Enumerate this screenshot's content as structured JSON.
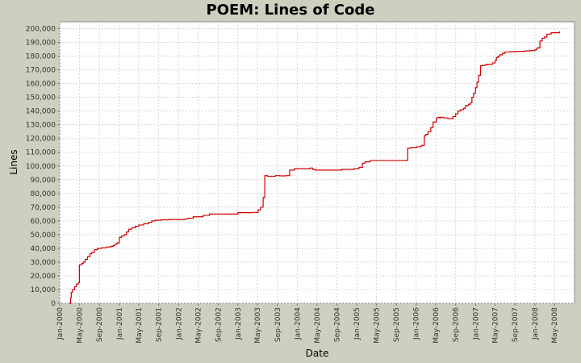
{
  "chart_data": {
    "type": "line",
    "title": "POEM: Lines of Code",
    "xlabel": "Date",
    "ylabel": "Lines",
    "ylim": [
      0,
      205000
    ],
    "xlim": [
      "2000-01-01",
      "2008-09-01"
    ],
    "y_ticks": [
      0,
      10000,
      20000,
      30000,
      40000,
      50000,
      60000,
      70000,
      80000,
      90000,
      100000,
      110000,
      120000,
      130000,
      140000,
      150000,
      160000,
      170000,
      180000,
      190000,
      200000
    ],
    "y_tick_labels": [
      "0",
      "10,000",
      "20,000",
      "30,000",
      "40,000",
      "50,000",
      "60,000",
      "70,000",
      "80,000",
      "90,000",
      "100,000",
      "110,000",
      "120,000",
      "130,000",
      "140,000",
      "150,000",
      "160,000",
      "170,000",
      "180,000",
      "190,000",
      "200,000"
    ],
    "x_ticks": [
      "2000-01-01",
      "2000-05-01",
      "2000-09-01",
      "2001-01-01",
      "2001-05-01",
      "2001-09-01",
      "2002-01-01",
      "2002-05-01",
      "2002-09-01",
      "2003-01-01",
      "2003-05-01",
      "2003-09-01",
      "2004-01-01",
      "2004-05-01",
      "2004-09-01",
      "2005-01-01",
      "2005-05-01",
      "2005-09-01",
      "2006-01-01",
      "2006-05-01",
      "2006-09-01",
      "2007-01-01",
      "2007-05-01",
      "2007-09-01",
      "2008-01-01",
      "2008-05-01"
    ],
    "x_tick_labels": [
      "Jan-2000",
      "May-2000",
      "Sep-2000",
      "Jan-2001",
      "May-2001",
      "Sep-2001",
      "Jan-2002",
      "May-2002",
      "Sep-2002",
      "Jan-2003",
      "May-2003",
      "Sep-2003",
      "Jan-2004",
      "May-2004",
      "Sep-2004",
      "Jan-2005",
      "May-2005",
      "Sep-2005",
      "Jan-2006",
      "May-2006",
      "Sep-2006",
      "Jan-2007",
      "May-2007",
      "Sep-2007",
      "Jan-2008",
      "May-2008"
    ],
    "grid": true,
    "step": true,
    "colors": {
      "line": "#cc0000",
      "plot_background": "#ffffff",
      "page_background": "#cfcfbf"
    },
    "series": [
      {
        "x": [
          "2000-03-01",
          "2000-03-08",
          "2000-03-12",
          "2000-03-20",
          "2000-04-01",
          "2000-04-12",
          "2000-04-24",
          "2000-05-01",
          "2000-05-15",
          "2000-05-25",
          "2000-06-05",
          "2000-06-20",
          "2000-07-05",
          "2000-07-15",
          "2000-08-01",
          "2000-08-20",
          "2000-09-15",
          "2000-10-15",
          "2000-11-10",
          "2000-11-25",
          "2000-12-05",
          "2000-12-18",
          "2001-01-02",
          "2001-01-15",
          "2001-02-01",
          "2001-02-15",
          "2001-03-01",
          "2001-03-20",
          "2001-04-10",
          "2001-05-01",
          "2001-06-01",
          "2001-07-01",
          "2001-07-20",
          "2001-08-10",
          "2001-09-15",
          "2001-11-01",
          "2002-01-05",
          "2002-02-10",
          "2002-03-01",
          "2002-04-01",
          "2002-06-01",
          "2002-07-10",
          "2003-01-01",
          "2003-04-01",
          "2003-05-05",
          "2003-05-20",
          "2003-06-05",
          "2003-06-15",
          "2003-07-01",
          "2003-08-20",
          "2003-09-15",
          "2003-10-25",
          "2003-11-15",
          "2003-12-15",
          "2004-01-20",
          "2004-03-20",
          "2004-04-05",
          "2004-04-20",
          "2004-10-01",
          "2004-12-15",
          "2005-01-15",
          "2005-02-05",
          "2005-02-20",
          "2005-03-25",
          "2005-11-01",
          "2005-11-10",
          "2005-12-01",
          "2006-01-05",
          "2006-02-01",
          "2006-02-20",
          "2006-03-01",
          "2006-03-15",
          "2006-04-01",
          "2006-04-15",
          "2006-05-05",
          "2006-05-15",
          "2006-05-25",
          "2006-06-01",
          "2006-06-20",
          "2006-07-15",
          "2006-08-15",
          "2006-09-01",
          "2006-09-15",
          "2006-10-01",
          "2006-10-20",
          "2006-11-01",
          "2006-11-20",
          "2006-12-01",
          "2006-12-10",
          "2006-12-20",
          "2007-01-01",
          "2007-01-10",
          "2007-01-20",
          "2007-02-01",
          "2007-02-10",
          "2007-02-20",
          "2007-03-01",
          "2007-03-10",
          "2007-04-15",
          "2007-05-01",
          "2007-05-10",
          "2007-05-20",
          "2007-06-01",
          "2007-06-15",
          "2007-07-01",
          "2007-08-01",
          "2007-09-01",
          "2007-10-01",
          "2007-11-01",
          "2007-12-01",
          "2008-01-01",
          "2008-01-10",
          "2008-01-15",
          "2008-02-01",
          "2008-02-15",
          "2008-03-01",
          "2008-03-15",
          "2008-04-10",
          "2008-06-01",
          "2008-06-01"
        ],
        "values": [
          0,
          4000,
          8000,
          10000,
          12000,
          14000,
          15000,
          28000,
          29000,
          30000,
          32000,
          34000,
          36000,
          37000,
          39000,
          40000,
          40500,
          41000,
          41500,
          42000,
          43000,
          44000,
          48000,
          49000,
          50000,
          52000,
          54000,
          55000,
          56000,
          57000,
          58000,
          59000,
          60000,
          60500,
          60800,
          61000,
          61000,
          61500,
          62000,
          63000,
          64000,
          65000,
          66000,
          66200,
          68000,
          70000,
          77000,
          93000,
          92500,
          93000,
          92800,
          93000,
          97000,
          98000,
          98000,
          98500,
          97500,
          97000,
          97500,
          98000,
          99000,
          102000,
          103000,
          104000,
          104200,
          113000,
          113500,
          114000,
          115000,
          122000,
          123000,
          125000,
          128000,
          132000,
          135000,
          135500,
          135000,
          135500,
          135000,
          134500,
          136000,
          138000,
          140000,
          141000,
          142000,
          144000,
          145000,
          146000,
          150000,
          153000,
          157000,
          161000,
          166000,
          173000,
          173200,
          173300,
          173500,
          174000,
          175000,
          177000,
          179000,
          180000,
          181000,
          182000,
          183000,
          183200,
          183400,
          183500,
          183800,
          184000,
          184500,
          185000,
          186000,
          191000,
          193000,
          194000,
          196000,
          197000,
          198000,
          198000
        ]
      }
    ]
  }
}
